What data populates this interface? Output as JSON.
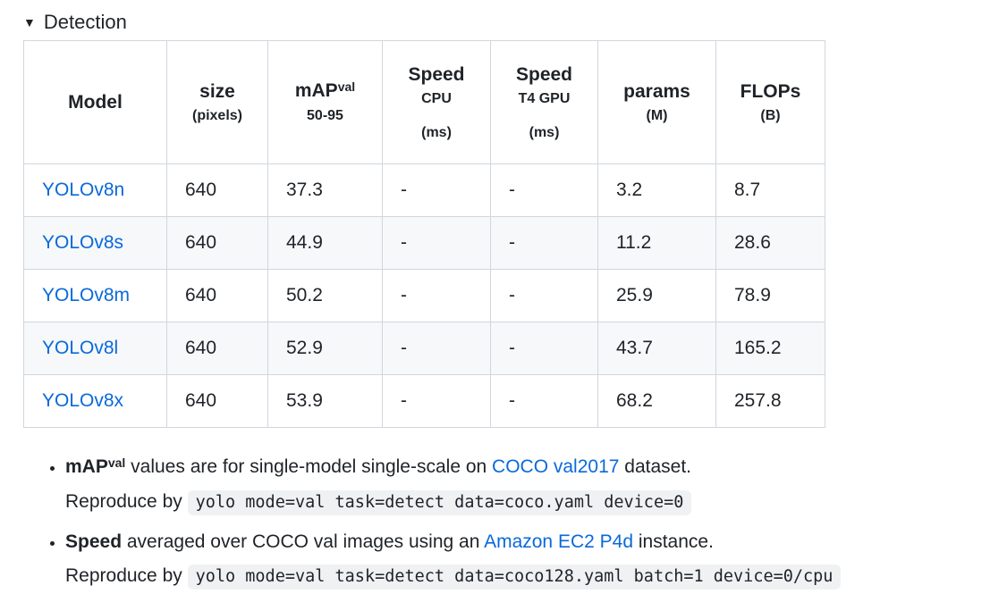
{
  "colors": {
    "text": "#1f2328",
    "link": "#0969da",
    "table_border": "#d0d7de",
    "row_stripe": "#f6f8fa",
    "code_bg": "#eff1f3"
  },
  "section": {
    "marker_icon": "▼",
    "title": "Detection"
  },
  "table": {
    "columns": [
      {
        "main": "Model"
      },
      {
        "main": "size",
        "sub": "(pixels)"
      },
      {
        "main": "mAP",
        "sup": "val",
        "sub": "50-95"
      },
      {
        "main": "Speed",
        "sub": "CPU",
        "sub2": "(ms)"
      },
      {
        "main": "Speed",
        "sub": "T4 GPU",
        "sub2": "(ms)"
      },
      {
        "main": "params",
        "sub": "(M)"
      },
      {
        "main": "FLOPs",
        "sub": "(B)"
      }
    ],
    "rows": [
      {
        "model": "YOLOv8n",
        "values": [
          "640",
          "37.3",
          "-",
          "-",
          "3.2",
          "8.7"
        ]
      },
      {
        "model": "YOLOv8s",
        "values": [
          "640",
          "44.9",
          "-",
          "-",
          "11.2",
          "28.6"
        ]
      },
      {
        "model": "YOLOv8m",
        "values": [
          "640",
          "50.2",
          "-",
          "-",
          "25.9",
          "78.9"
        ]
      },
      {
        "model": "YOLOv8l",
        "values": [
          "640",
          "52.9",
          "-",
          "-",
          "43.7",
          "165.2"
        ]
      },
      {
        "model": "YOLOv8x",
        "values": [
          "640",
          "53.9",
          "-",
          "-",
          "68.2",
          "257.8"
        ]
      }
    ]
  },
  "notes": [
    {
      "bold": "mAP",
      "sup": "val",
      "text_after_bold": " values are for single-model single-scale on ",
      "link": "COCO val2017",
      "text_after_link": " dataset.",
      "reproduce_label": "Reproduce by ",
      "code": "yolo mode=val task=detect data=coco.yaml device=0"
    },
    {
      "bold": "Speed",
      "text_after_bold": " averaged over COCO val images using an ",
      "link": "Amazon EC2 P4d",
      "text_after_link": " instance.",
      "reproduce_label": "Reproduce by ",
      "code": "yolo mode=val task=detect data=coco128.yaml batch=1 device=0/cpu"
    }
  ]
}
